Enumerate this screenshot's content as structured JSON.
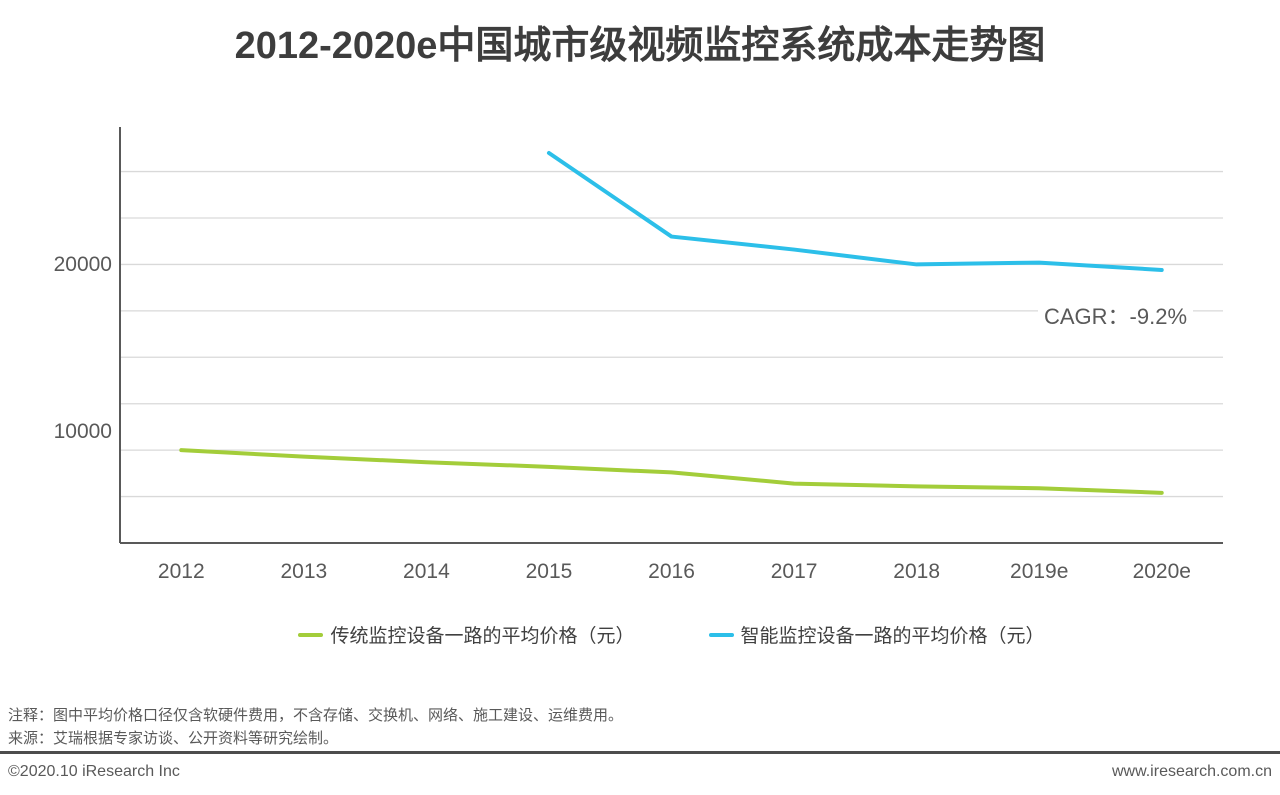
{
  "title": "2012-2020e中国城市级视频监控系统成本走势图",
  "chart_data": {
    "type": "line",
    "title": "2012-2020e中国城市级视频监控系统成本走势图",
    "categories": [
      "2012",
      "2013",
      "2014",
      "2015",
      "2016",
      "2017",
      "2018",
      "2019e",
      "2020e"
    ],
    "series": [
      {
        "name": "传统监控设备一路的平均价格（元）",
        "color": "#a3cd3a",
        "values": [
          10000,
          9650,
          9350,
          9100,
          8800,
          8200,
          8050,
          7950,
          7700
        ]
      },
      {
        "name": "智能监控设备一路的平均价格（元）",
        "color": "#2cbfe9",
        "values": [
          null,
          null,
          null,
          26000,
          21500,
          20800,
          20000,
          20100,
          19700
        ]
      }
    ],
    "ylim": [
      5000,
      27400
    ],
    "grid_interval": 2500,
    "grid": "horizontal",
    "legend_position": "bottom",
    "yticks": [
      {
        "value": 20000,
        "label": "20000"
      },
      {
        "value": 10000,
        "label": "10000"
      }
    ],
    "annotation": "CAGR：-9.2%"
  },
  "colors": {
    "traditional": "#a3cd3a",
    "smart": "#2cbfe9",
    "gridline": "#d9d9d9",
    "axis": "#595959"
  },
  "notes": {
    "note_line": "注释：图中平均价格口径仅含软硬件费用，不含存储、交换机、网络、施工建设、运维费用。",
    "source_line": "来源：艾瑞根据专家访谈、公开资料等研究绘制。"
  },
  "footer": {
    "copyright": "©2020.10 iResearch Inc",
    "url": "www.iresearch.com.cn"
  }
}
